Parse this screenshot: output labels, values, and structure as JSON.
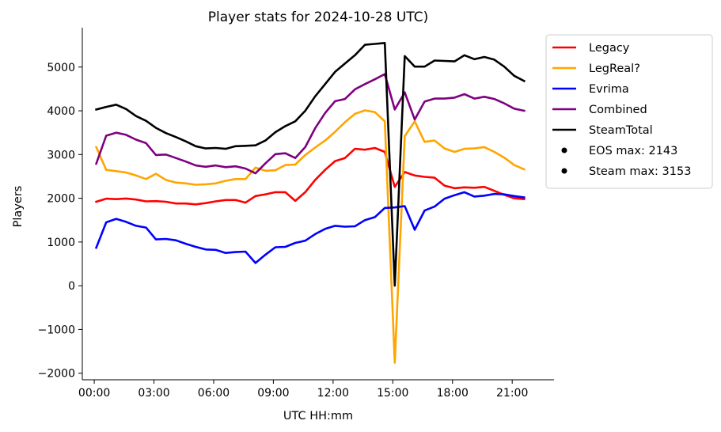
{
  "chart_data": {
    "type": "line",
    "title": "Player stats for 2024-10-28 UTC)",
    "xlabel": "UTC HH:mm",
    "ylabel": "Players",
    "xlim": [
      -0.6,
      23.1
    ],
    "ylim": [
      -2150,
      5900
    ],
    "xticks": [
      {
        "value": 0,
        "label": "00:00"
      },
      {
        "value": 3,
        "label": "03:00"
      },
      {
        "value": 6,
        "label": "06:00"
      },
      {
        "value": 9,
        "label": "09:00"
      },
      {
        "value": 12,
        "label": "12:00"
      },
      {
        "value": 15,
        "label": "15:00"
      },
      {
        "value": 18,
        "label": "18:00"
      },
      {
        "value": 21,
        "label": "21:00"
      }
    ],
    "yticks": [
      {
        "value": 5000,
        "label": "5000"
      },
      {
        "value": 4000,
        "label": "4000"
      },
      {
        "value": 3000,
        "label": "3000"
      },
      {
        "value": 2000,
        "label": "2000"
      },
      {
        "value": 1000,
        "label": "1000"
      },
      {
        "value": 0,
        "label": "0"
      },
      {
        "value": -1000,
        "label": "−1000"
      },
      {
        "value": -2000,
        "label": "−2000"
      }
    ],
    "grid": false,
    "legend_position": "outside-top-right",
    "x": [
      0.1,
      0.6,
      1.1,
      1.6,
      2.1,
      2.6,
      3.1,
      3.6,
      4.1,
      4.6,
      5.1,
      5.6,
      6.1,
      6.6,
      7.1,
      7.6,
      8.1,
      8.6,
      9.1,
      9.6,
      10.1,
      10.6,
      11.1,
      11.6,
      12.1,
      12.6,
      13.1,
      13.6,
      14.1,
      14.6,
      15.1,
      15.6,
      16.1,
      16.6,
      17.1,
      17.6,
      18.1,
      18.6,
      19.1,
      19.6,
      20.1,
      20.6,
      21.1,
      21.6
    ],
    "series": [
      {
        "name": "Legacy",
        "color": "#ff0000",
        "values": [
          1920,
          1990,
          1980,
          1995,
          1970,
          1930,
          1935,
          1920,
          1880,
          1880,
          1860,
          1890,
          1930,
          1960,
          1960,
          1900,
          2050,
          2090,
          2140,
          2140,
          1940,
          2140,
          2420,
          2650,
          2850,
          2920,
          3130,
          3110,
          3150,
          3060,
          2260,
          2600,
          2520,
          2490,
          2470,
          2290,
          2230,
          2250,
          2240,
          2260,
          2170,
          2080,
          2000,
          1980
        ]
      },
      {
        "name": "LegReal?",
        "color": "#ffa500",
        "values": [
          3170,
          2650,
          2620,
          2590,
          2520,
          2440,
          2560,
          2420,
          2360,
          2340,
          2310,
          2320,
          2340,
          2400,
          2440,
          2440,
          2700,
          2630,
          2640,
          2760,
          2770,
          2990,
          3160,
          3320,
          3520,
          3740,
          3930,
          4010,
          3970,
          3760,
          -1760,
          3420,
          3760,
          3290,
          3320,
          3140,
          3060,
          3130,
          3140,
          3170,
          3060,
          2930,
          2760,
          2660
        ]
      },
      {
        "name": "Evrima",
        "color": "#0000ff",
        "values": [
          870,
          1450,
          1530,
          1460,
          1370,
          1330,
          1060,
          1070,
          1040,
          960,
          890,
          830,
          820,
          750,
          770,
          780,
          520,
          710,
          880,
          890,
          980,
          1030,
          1180,
          1300,
          1370,
          1350,
          1360,
          1500,
          1570,
          1780,
          1790,
          1820,
          1280,
          1720,
          1810,
          1990,
          2070,
          2140,
          2040,
          2060,
          2100,
          2090,
          2050,
          2020
        ]
      },
      {
        "name": "Combined",
        "color": "#800080",
        "values": [
          2790,
          3430,
          3500,
          3450,
          3340,
          3260,
          2990,
          3000,
          2920,
          2840,
          2750,
          2720,
          2750,
          2710,
          2730,
          2680,
          2570,
          2800,
          3010,
          3030,
          2920,
          3170,
          3600,
          3950,
          4220,
          4270,
          4490,
          4610,
          4720,
          4840,
          4030,
          4420,
          3800,
          4210,
          4280,
          4280,
          4300,
          4380,
          4280,
          4320,
          4270,
          4170,
          4050,
          4000
        ]
      },
      {
        "name": "SteamTotal",
        "color": "#000000",
        "values": [
          4030,
          4090,
          4140,
          4040,
          3880,
          3770,
          3610,
          3490,
          3400,
          3300,
          3190,
          3140,
          3150,
          3130,
          3190,
          3200,
          3210,
          3320,
          3510,
          3650,
          3760,
          4000,
          4330,
          4610,
          4890,
          5080,
          5270,
          5510,
          5530,
          5550,
          0,
          5250,
          5010,
          5010,
          5150,
          5140,
          5130,
          5270,
          5180,
          5230,
          5170,
          5010,
          4800,
          4680
        ]
      }
    ],
    "annotations": [
      {
        "label": "EOS max: 2143",
        "marker": "dot"
      },
      {
        "label": "Steam max: 3153",
        "marker": "dot"
      }
    ]
  }
}
